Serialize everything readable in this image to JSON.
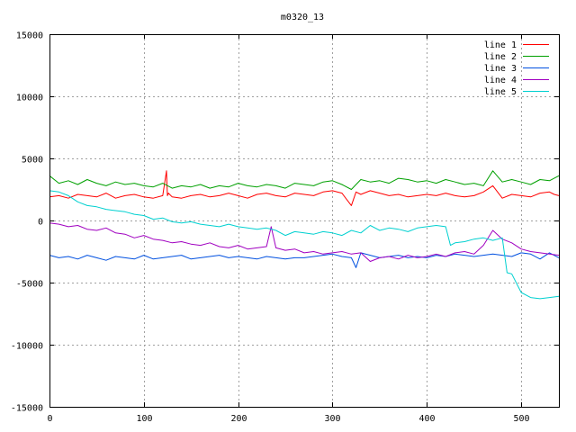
{
  "chart_data": {
    "type": "line",
    "title": "m0320_13",
    "xlabel": "",
    "ylabel": "",
    "xlim": [
      0,
      540
    ],
    "ylim": [
      -15000,
      15000
    ],
    "xticks": [
      0,
      100,
      200,
      300,
      400,
      500
    ],
    "yticks": [
      -15000,
      -10000,
      -5000,
      0,
      5000,
      10000,
      15000
    ],
    "grid": true,
    "legend_position": "top-right",
    "series": [
      {
        "name": "line 1",
        "color": "#ff0000",
        "x": [
          0,
          10,
          20,
          30,
          40,
          50,
          60,
          70,
          80,
          90,
          100,
          110,
          120,
          124,
          125,
          126,
          130,
          140,
          150,
          160,
          170,
          180,
          190,
          200,
          210,
          220,
          230,
          240,
          250,
          260,
          270,
          280,
          290,
          300,
          310,
          320,
          325,
          330,
          340,
          350,
          360,
          370,
          380,
          390,
          400,
          410,
          420,
          430,
          440,
          450,
          460,
          470,
          480,
          490,
          500,
          510,
          520,
          530,
          535,
          540
        ],
        "y": [
          1900,
          2000,
          1800,
          2100,
          2000,
          1900,
          2200,
          1800,
          2000,
          2100,
          1900,
          1800,
          2000,
          4000,
          2000,
          2200,
          1900,
          1800,
          2000,
          2100,
          1900,
          2000,
          2200,
          2000,
          1800,
          2100,
          2200,
          2000,
          1900,
          2200,
          2100,
          2000,
          2300,
          2400,
          2200,
          1200,
          2300,
          2100,
          2400,
          2200,
          2000,
          2100,
          1900,
          2000,
          2100,
          2000,
          2200,
          2000,
          1900,
          2000,
          2300,
          2800,
          1800,
          2100,
          2000,
          1900,
          2200,
          2300,
          2100,
          2000
        ]
      },
      {
        "name": "line 2",
        "color": "#00a000",
        "x": [
          0,
          10,
          20,
          30,
          40,
          50,
          60,
          70,
          80,
          90,
          100,
          110,
          120,
          130,
          140,
          150,
          160,
          170,
          180,
          190,
          200,
          210,
          220,
          230,
          240,
          250,
          260,
          270,
          280,
          290,
          300,
          310,
          320,
          330,
          340,
          350,
          360,
          370,
          380,
          390,
          400,
          410,
          420,
          430,
          440,
          450,
          460,
          470,
          480,
          490,
          500,
          510,
          520,
          530,
          540
        ],
        "y": [
          3600,
          3000,
          3200,
          2900,
          3300,
          3000,
          2800,
          3100,
          2900,
          3000,
          2800,
          2700,
          3000,
          2600,
          2800,
          2700,
          2900,
          2600,
          2800,
          2700,
          3000,
          2800,
          2700,
          2900,
          2800,
          2600,
          3000,
          2900,
          2800,
          3100,
          3200,
          2900,
          2500,
          3300,
          3100,
          3200,
          3000,
          3400,
          3300,
          3100,
          3200,
          3000,
          3300,
          3100,
          2900,
          3000,
          2800,
          4000,
          3100,
          3300,
          3100,
          2900,
          3300,
          3200,
          3600
        ]
      },
      {
        "name": "line 3",
        "color": "#0050e0",
        "x": [
          0,
          10,
          20,
          30,
          40,
          50,
          60,
          70,
          80,
          90,
          100,
          110,
          120,
          130,
          140,
          150,
          160,
          170,
          180,
          190,
          200,
          210,
          220,
          230,
          240,
          250,
          260,
          270,
          280,
          290,
          300,
          310,
          320,
          325,
          330,
          340,
          350,
          360,
          370,
          380,
          390,
          400,
          410,
          420,
          430,
          440,
          450,
          460,
          470,
          480,
          490,
          500,
          510,
          520,
          530,
          540
        ],
        "y": [
          -2800,
          -3000,
          -2900,
          -3100,
          -2800,
          -3000,
          -3200,
          -2900,
          -3000,
          -3100,
          -2800,
          -3100,
          -3000,
          -2900,
          -2800,
          -3100,
          -3000,
          -2900,
          -2800,
          -3000,
          -2900,
          -3000,
          -3100,
          -2900,
          -3000,
          -3100,
          -3000,
          -3000,
          -2900,
          -2800,
          -2700,
          -2900,
          -3000,
          -3800,
          -2600,
          -2800,
          -3000,
          -2900,
          -2800,
          -3000,
          -2900,
          -3000,
          -2800,
          -2900,
          -2700,
          -2800,
          -2900,
          -2800,
          -2700,
          -2800,
          -2900,
          -2600,
          -2700,
          -3100,
          -2600,
          -3000
        ]
      },
      {
        "name": "line 4",
        "color": "#a000c0",
        "x": [
          0,
          10,
          20,
          30,
          40,
          50,
          60,
          70,
          80,
          90,
          100,
          110,
          120,
          130,
          140,
          150,
          160,
          170,
          180,
          190,
          200,
          210,
          220,
          230,
          235,
          240,
          250,
          260,
          270,
          280,
          290,
          300,
          310,
          320,
          330,
          340,
          350,
          360,
          370,
          380,
          390,
          400,
          410,
          420,
          430,
          440,
          450,
          460,
          470,
          480,
          490,
          500,
          510,
          520,
          530,
          540
        ],
        "y": [
          -200,
          -300,
          -500,
          -400,
          -700,
          -800,
          -600,
          -1000,
          -1100,
          -1400,
          -1200,
          -1500,
          -1600,
          -1800,
          -1700,
          -1900,
          -2000,
          -1800,
          -2100,
          -2200,
          -2000,
          -2300,
          -2200,
          -2100,
          -500,
          -2200,
          -2400,
          -2300,
          -2600,
          -2500,
          -2700,
          -2600,
          -2500,
          -2700,
          -2600,
          -3300,
          -3000,
          -2900,
          -3100,
          -2800,
          -3000,
          -2900,
          -2700,
          -2900,
          -2600,
          -2500,
          -2700,
          -2000,
          -800,
          -1500,
          -1800,
          -2300,
          -2500,
          -2600,
          -2700,
          -2800
        ]
      },
      {
        "name": "line 5",
        "color": "#00d0d0",
        "x": [
          0,
          10,
          20,
          30,
          40,
          50,
          60,
          70,
          80,
          90,
          100,
          110,
          120,
          130,
          140,
          150,
          160,
          170,
          180,
          190,
          200,
          210,
          220,
          230,
          240,
          250,
          260,
          270,
          280,
          290,
          300,
          310,
          320,
          330,
          340,
          350,
          360,
          370,
          380,
          390,
          400,
          410,
          420,
          425,
          430,
          440,
          450,
          460,
          470,
          480,
          485,
          490,
          500,
          510,
          520,
          530,
          540
        ],
        "y": [
          2400,
          2300,
          2000,
          1500,
          1200,
          1100,
          900,
          800,
          700,
          500,
          400,
          100,
          200,
          -100,
          -200,
          -100,
          -300,
          -400,
          -500,
          -300,
          -500,
          -600,
          -700,
          -600,
          -800,
          -1200,
          -900,
          -1000,
          -1100,
          -900,
          -1000,
          -1200,
          -800,
          -1000,
          -400,
          -800,
          -600,
          -700,
          -900,
          -600,
          -500,
          -400,
          -500,
          -2000,
          -1800,
          -1700,
          -1500,
          -1400,
          -1600,
          -1400,
          -4200,
          -4300,
          -5800,
          -6200,
          -6300,
          -6200,
          -6100
        ]
      }
    ]
  }
}
